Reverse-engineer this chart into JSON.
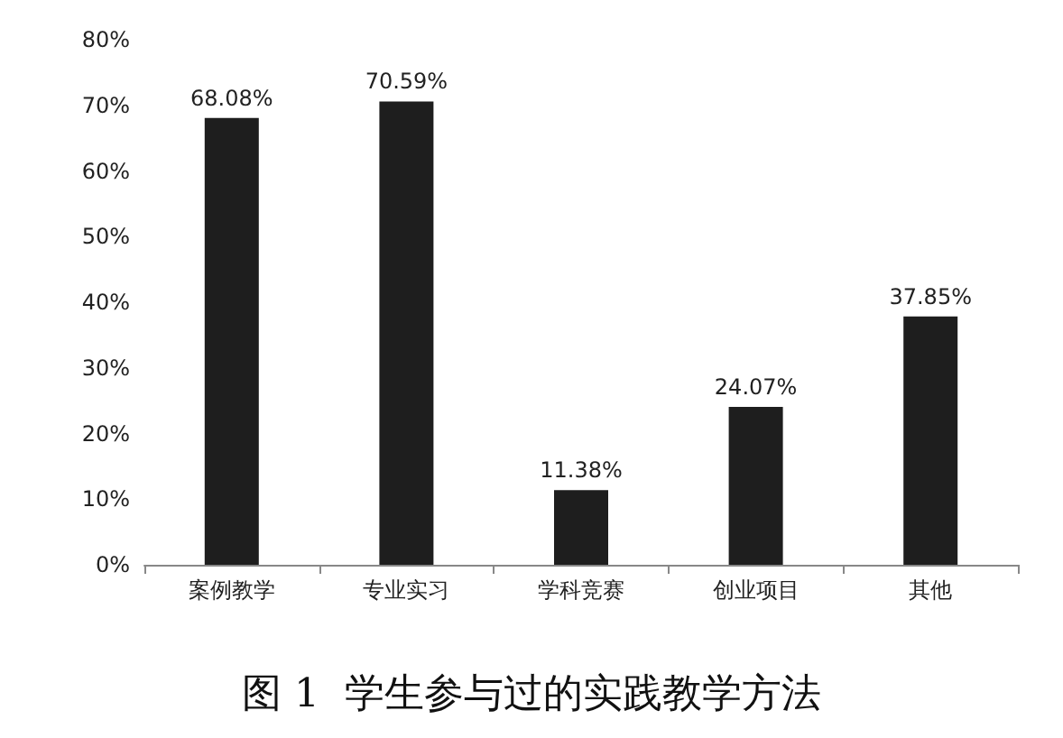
{
  "chart_data": {
    "type": "bar",
    "title": "图 1  学生参与过的实践教学方法",
    "categories": [
      "案例教学",
      "专业实习",
      "学科竞赛",
      "创业项目",
      "其他"
    ],
    "values": [
      68.08,
      70.59,
      11.38,
      24.07,
      37.85
    ],
    "value_labels": [
      "68.08%",
      "70.59%",
      "11.38%",
      "24.07%",
      "37.85%"
    ],
    "color": "#1e1e1e",
    "ylim": [
      0,
      80
    ],
    "yticks": [
      {
        "value": 0,
        "label": "0%"
      },
      {
        "value": 10,
        "label": "10%"
      },
      {
        "value": 20,
        "label": "20%"
      },
      {
        "value": 30,
        "label": "30%"
      },
      {
        "value": 40,
        "label": "40%"
      },
      {
        "value": 50,
        "label": "50%"
      },
      {
        "value": 60,
        "label": "60%"
      },
      {
        "value": 70,
        "label": "70%"
      },
      {
        "value": 80,
        "label": "80%"
      }
    ],
    "grid": false
  }
}
